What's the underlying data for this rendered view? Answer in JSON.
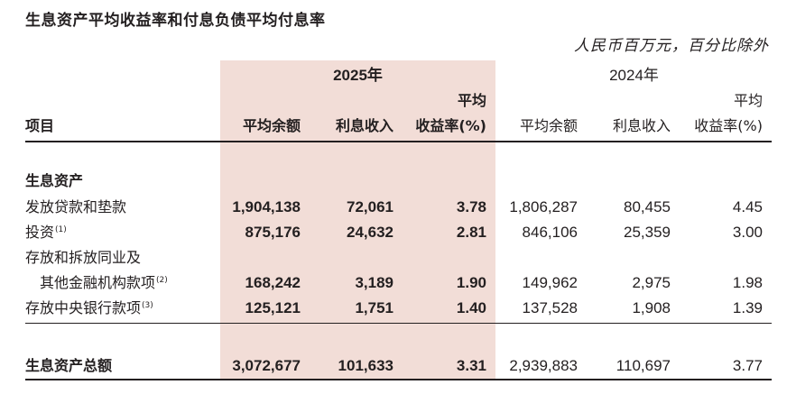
{
  "title": "生息资产平均收益率和付息负债平均付息率",
  "unit": "人民币百万元，百分比除外",
  "header": {
    "year_2025": "2025年",
    "year_2024": "2024年",
    "item": "项目",
    "avg_balance": "平均余额",
    "interest_income": "利息收入",
    "avg_yield_line1": "平均",
    "avg_yield_line2": "收益率(%)"
  },
  "section_label": "生息资产",
  "rows": [
    {
      "label": "发放贷款和垫款",
      "note": "",
      "v2025": [
        "1,904,138",
        "72,061",
        "3.78"
      ],
      "v2024": [
        "1,806,287",
        "80,455",
        "4.45"
      ]
    },
    {
      "label": "投资",
      "note": "(1)",
      "v2025": [
        "875,176",
        "24,632",
        "2.81"
      ],
      "v2024": [
        "846,106",
        "25,359",
        "3.00"
      ]
    },
    {
      "label": "存放和拆放同业及",
      "label2": "其他金融机构款项",
      "note": "(2)",
      "v2025": [
        "168,242",
        "3,189",
        "1.90"
      ],
      "v2024": [
        "149,962",
        "2,975",
        "1.98"
      ]
    },
    {
      "label": "存放中央银行款项",
      "note": "(3)",
      "v2025": [
        "125,121",
        "1,751",
        "1.40"
      ],
      "v2024": [
        "137,528",
        "1,908",
        "1.39"
      ]
    }
  ],
  "total": {
    "label": "生息资产总额",
    "v2025": [
      "3,072,677",
      "101,633",
      "3.31"
    ],
    "v2024": [
      "2,939,883",
      "110,697",
      "3.77"
    ]
  }
}
